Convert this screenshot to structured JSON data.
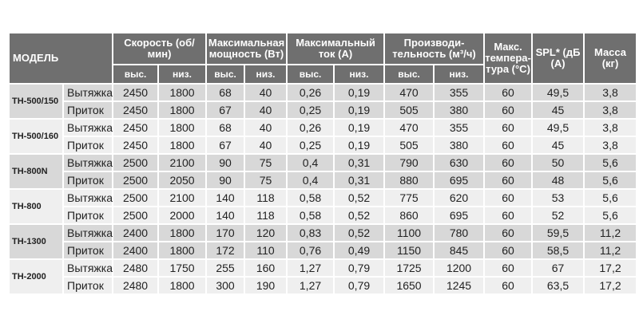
{
  "header": {
    "model": "МОДЕЛЬ",
    "speed": "Скорость (об/мин)",
    "power": "Максимальная мощность (Вт)",
    "current": "Максимальный ток (А)",
    "capacity": "Производи-тельность (м³/ч)",
    "temp": "Макс. темпера-тура (°С)",
    "spl": "SPL* (дБ (А)",
    "mass": "Масса (кг)",
    "hi": "выс.",
    "lo": "низ."
  },
  "colors": {
    "header_bg": "#6f6f6f",
    "band_dark": "#d8d8d8",
    "band_light": "#efefef"
  },
  "models": [
    {
      "name": "ТН-500/150",
      "rows": [
        {
          "type": "Вытяжка",
          "values": [
            "2450",
            "1800",
            "68",
            "40",
            "0,26",
            "0,19",
            "470",
            "355",
            "60",
            "49,5",
            "3,8"
          ]
        },
        {
          "type": "Приток",
          "values": [
            "2450",
            "1800",
            "67",
            "40",
            "0,25",
            "0,19",
            "505",
            "380",
            "60",
            "45",
            "3,8"
          ]
        }
      ]
    },
    {
      "name": "ТН-500/160",
      "rows": [
        {
          "type": "Вытяжка",
          "values": [
            "2450",
            "1800",
            "68",
            "40",
            "0,26",
            "0,19",
            "470",
            "355",
            "60",
            "49,5",
            "3,8"
          ]
        },
        {
          "type": "Приток",
          "values": [
            "2450",
            "1800",
            "67",
            "40",
            "0,25",
            "0,19",
            "505",
            "380",
            "60",
            "45",
            "3,8"
          ]
        }
      ]
    },
    {
      "name": "ТН-800N",
      "rows": [
        {
          "type": "Вытяжка",
          "values": [
            "2500",
            "2100",
            "90",
            "75",
            "0,4",
            "0,31",
            "790",
            "630",
            "60",
            "50",
            "5,6"
          ]
        },
        {
          "type": "Приток",
          "values": [
            "2500",
            "2050",
            "90",
            "75",
            "0,4",
            "0,31",
            "880",
            "695",
            "60",
            "48",
            "5,6"
          ]
        }
      ]
    },
    {
      "name": "ТН-800",
      "rows": [
        {
          "type": "Вытяжка",
          "values": [
            "2500",
            "2100",
            "140",
            "118",
            "0,58",
            "0,52",
            "775",
            "620",
            "60",
            "53",
            "5,6"
          ]
        },
        {
          "type": "Приток",
          "values": [
            "2500",
            "2000",
            "140",
            "118",
            "0,58",
            "0,52",
            "860",
            "695",
            "60",
            "52",
            "5,6"
          ]
        }
      ]
    },
    {
      "name": "ТН-1300",
      "rows": [
        {
          "type": "Вытяжка",
          "values": [
            "2400",
            "1800",
            "170",
            "120",
            "0,83",
            "0,52",
            "1100",
            "780",
            "60",
            "59,5",
            "11,2"
          ]
        },
        {
          "type": "Приток",
          "values": [
            "2400",
            "1800",
            "172",
            "110",
            "0,76",
            "0,49",
            "1150",
            "845",
            "60",
            "58,5",
            "11,2"
          ]
        }
      ]
    },
    {
      "name": "ТН-2000",
      "rows": [
        {
          "type": "Вытяжка",
          "values": [
            "2480",
            "1750",
            "255",
            "160",
            "1,27",
            "0,79",
            "1725",
            "1200",
            "60",
            "67",
            "17,2"
          ]
        },
        {
          "type": "Приток",
          "values": [
            "2480",
            "1800",
            "300",
            "190",
            "1,27",
            "0,79",
            "1650",
            "1245",
            "60",
            "63,5",
            "17,2"
          ]
        }
      ]
    }
  ]
}
